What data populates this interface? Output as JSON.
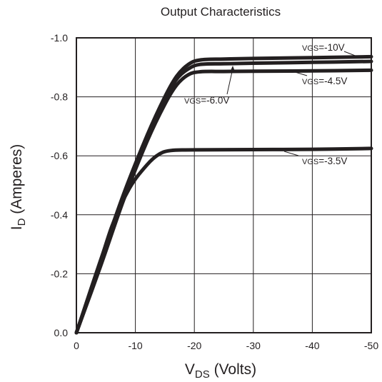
{
  "chart_data": {
    "type": "line",
    "title": "Output Characteristics",
    "xlabel": {
      "main": "V",
      "sub": "DS",
      "rest": " (Volts)"
    },
    "ylabel": {
      "main": "I",
      "sub": "D",
      "rest": " (Amperes)"
    },
    "xlim": [
      0,
      -50
    ],
    "ylim": [
      0,
      -1.0
    ],
    "x_ticks": [
      "0",
      "-10",
      "-20",
      "-30",
      "-40",
      "-50"
    ],
    "y_ticks": [
      "0.0",
      "-0.2",
      "-0.4",
      "-0.6",
      "-0.8",
      "-1.0"
    ],
    "grid": true,
    "series": [
      {
        "name": "VGS=-10V",
        "points": [
          [
            0,
            0
          ],
          [
            -4,
            -0.24
          ],
          [
            -8,
            -0.47
          ],
          [
            -12,
            -0.67
          ],
          [
            -15,
            -0.8
          ],
          [
            -17,
            -0.87
          ],
          [
            -19,
            -0.91
          ],
          [
            -21,
            -0.925
          ],
          [
            -25,
            -0.928
          ],
          [
            -30,
            -0.93
          ],
          [
            -40,
            -0.933
          ],
          [
            -50,
            -0.936
          ]
        ]
      },
      {
        "name": "VGS=-6.0V",
        "points": [
          [
            0,
            0
          ],
          [
            -4,
            -0.23
          ],
          [
            -8,
            -0.46
          ],
          [
            -12,
            -0.66
          ],
          [
            -15,
            -0.79
          ],
          [
            -17,
            -0.86
          ],
          [
            -19,
            -0.895
          ],
          [
            -21,
            -0.91
          ],
          [
            -25,
            -0.912
          ],
          [
            -30,
            -0.914
          ],
          [
            -40,
            -0.917
          ],
          [
            -50,
            -0.92
          ]
        ]
      },
      {
        "name": "VGS=-4.5V",
        "points": [
          [
            0,
            0
          ],
          [
            -4,
            -0.22
          ],
          [
            -8,
            -0.45
          ],
          [
            -12,
            -0.65
          ],
          [
            -15,
            -0.775
          ],
          [
            -17,
            -0.84
          ],
          [
            -19,
            -0.875
          ],
          [
            -21,
            -0.885
          ],
          [
            -25,
            -0.886
          ],
          [
            -30,
            -0.887
          ],
          [
            -40,
            -0.888
          ],
          [
            -50,
            -0.89
          ]
        ]
      },
      {
        "name": "VGS=-3.5V",
        "points": [
          [
            0,
            0
          ],
          [
            -3,
            -0.17
          ],
          [
            -6,
            -0.36
          ],
          [
            -9,
            -0.49
          ],
          [
            -12,
            -0.57
          ],
          [
            -14,
            -0.605
          ],
          [
            -16,
            -0.618
          ],
          [
            -20,
            -0.62
          ],
          [
            -30,
            -0.621
          ],
          [
            -40,
            -0.622
          ],
          [
            -50,
            -0.625
          ]
        ]
      }
    ],
    "annotations": [
      {
        "prefix": "V",
        "sub": "GS",
        "value": "=-10V"
      },
      {
        "prefix": "V",
        "sub": "GS",
        "value": "=-4.5V"
      },
      {
        "prefix": "V",
        "sub": "GS",
        "value": "=-6.0V"
      },
      {
        "prefix": "V",
        "sub": "GS",
        "value": "=-3.5V"
      }
    ]
  }
}
